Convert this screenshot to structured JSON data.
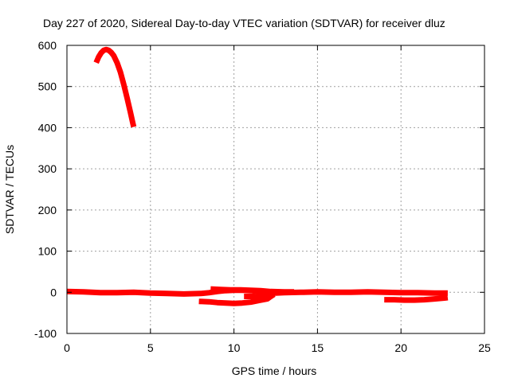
{
  "chart_data": {
    "type": "line",
    "title": "Day 227 of 2020, Sidereal Day-to-day VTEC variation (SDTVAR) for receiver dluz",
    "xlabel": "GPS time / hours",
    "ylabel": "SDTVAR / TECUs",
    "xlim": [
      0,
      25
    ],
    "ylim": [
      -100,
      600
    ],
    "xticks": [
      0,
      5,
      10,
      15,
      20,
      25
    ],
    "yticks": [
      -100,
      0,
      100,
      200,
      300,
      400,
      500,
      600
    ],
    "grid": true,
    "legend": "none",
    "color": "#ff0000",
    "series": [
      {
        "values": [
          [
            1.75,
            558
          ],
          [
            1.9,
            572
          ],
          [
            2.05,
            582
          ],
          [
            2.2,
            588
          ],
          [
            2.35,
            590
          ],
          [
            2.5,
            588
          ],
          [
            2.65,
            583
          ],
          [
            2.8,
            575
          ],
          [
            3.0,
            558
          ],
          [
            3.2,
            535
          ],
          [
            3.4,
            505
          ],
          [
            3.6,
            472
          ],
          [
            3.8,
            438
          ],
          [
            3.95,
            410
          ],
          [
            4.0,
            402
          ]
        ]
      },
      {
        "values": [
          [
            0.0,
            2
          ],
          [
            1.0,
            1
          ],
          [
            2.0,
            -1
          ],
          [
            3.0,
            -1
          ],
          [
            4.0,
            0
          ],
          [
            5.0,
            -2
          ],
          [
            6.0,
            -3
          ],
          [
            7.0,
            -4
          ],
          [
            8.0,
            -3
          ],
          [
            8.5,
            -1
          ],
          [
            9.0,
            2
          ],
          [
            9.5,
            4
          ],
          [
            10.0,
            5
          ],
          [
            10.5,
            5
          ],
          [
            11.0,
            4
          ],
          [
            11.5,
            2
          ],
          [
            12.0,
            0
          ],
          [
            12.5,
            -2
          ],
          [
            13.0,
            -1
          ],
          [
            14.0,
            0
          ],
          [
            15.0,
            1
          ],
          [
            16.0,
            0
          ],
          [
            17.0,
            0
          ],
          [
            18.0,
            1
          ],
          [
            19.0,
            0
          ],
          [
            20.0,
            -1
          ],
          [
            21.0,
            -1
          ],
          [
            22.0,
            -2
          ],
          [
            22.8,
            -2
          ]
        ]
      },
      {
        "values": [
          [
            7.9,
            -22
          ],
          [
            8.5,
            -23
          ],
          [
            9.0,
            -25
          ],
          [
            9.5,
            -26
          ],
          [
            10.0,
            -27
          ],
          [
            10.5,
            -26
          ],
          [
            11.0,
            -24
          ],
          [
            11.5,
            -20
          ],
          [
            12.0,
            -16
          ],
          [
            12.2,
            -10
          ],
          [
            12.4,
            -5
          ]
        ]
      },
      {
        "values": [
          [
            8.6,
            8
          ],
          [
            9.2,
            7
          ],
          [
            9.8,
            6
          ],
          [
            10.4,
            6
          ],
          [
            11.0,
            5
          ],
          [
            11.6,
            4
          ],
          [
            12.2,
            2
          ],
          [
            13.0,
            1
          ],
          [
            13.6,
            1
          ]
        ]
      },
      {
        "values": [
          [
            19.0,
            -18
          ],
          [
            19.6,
            -18
          ],
          [
            20.2,
            -19
          ],
          [
            20.8,
            -19
          ],
          [
            21.4,
            -18
          ],
          [
            22.0,
            -16
          ],
          [
            22.6,
            -14
          ],
          [
            22.8,
            -13
          ]
        ]
      },
      {
        "values": [
          [
            10.6,
            -10
          ],
          [
            11.2,
            -10
          ],
          [
            11.8,
            -11
          ],
          [
            12.3,
            -9
          ]
        ]
      }
    ]
  }
}
